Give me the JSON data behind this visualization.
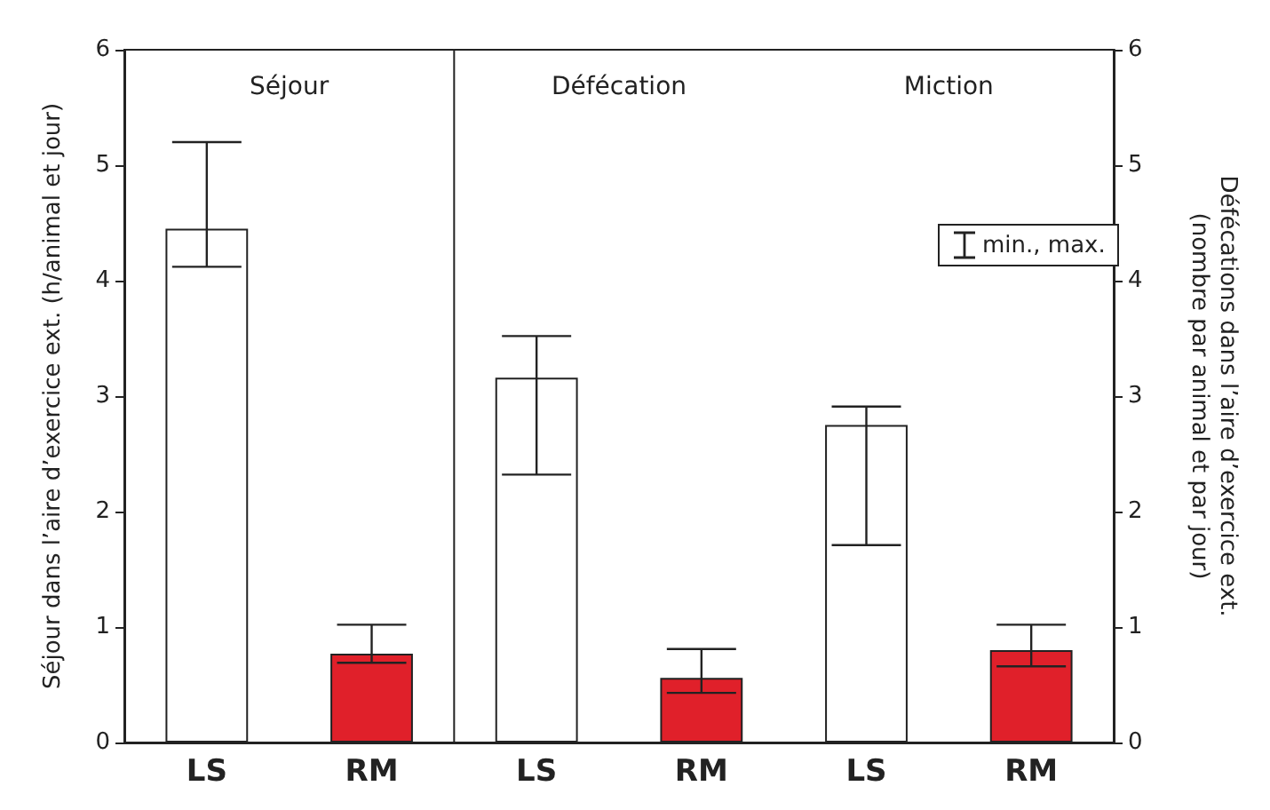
{
  "chart_data": {
    "type": "bar",
    "categories": [
      "LS",
      "RM",
      "LS",
      "RM",
      "LS",
      "RM"
    ],
    "values": [
      4.45,
      0.77,
      3.16,
      0.56,
      2.75,
      0.8
    ],
    "colors": [
      "#ffffff",
      "#e0202a",
      "#ffffff",
      "#e0202a",
      "#ffffff",
      "#e0202a"
    ],
    "errors": [
      [
        4.12,
        5.2
      ],
      [
        0.69,
        1.02
      ],
      [
        2.32,
        3.52
      ],
      [
        0.43,
        0.81
      ],
      [
        1.71,
        2.91
      ],
      [
        0.66,
        1.02
      ]
    ],
    "ylabel": "Séjour dans l’aire d’exercice ext. (h/animal et jour)",
    "y2label": "Défécations dans l’aire d’exercice ext.\n(nombre par animal et par jour)",
    "ylim": [
      0,
      6
    ],
    "yticks": [
      0,
      1,
      2,
      3,
      4,
      5,
      6
    ],
    "y2lim": [
      0,
      6
    ],
    "y2ticks": [
      0,
      1,
      2,
      3,
      4,
      5,
      6
    ],
    "legend_title": "min., max.",
    "grid": false,
    "annotations": [
      "Séjour",
      "Défécation",
      "Miction"
    ]
  }
}
